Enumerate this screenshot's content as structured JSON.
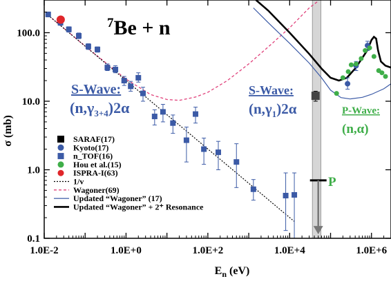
{
  "chart_data": {
    "type": "scatter",
    "title_prefix": "7",
    "title_main": "Be + n",
    "xlabel_main": "E",
    "xlabel_sub": "n",
    "xlabel_unit": " (eV)",
    "ylabel": "σ (mb)",
    "x_scale": "log",
    "y_scale": "log",
    "xlim": [
      0.01,
      3000000
    ],
    "ylim": [
      0.1,
      300
    ],
    "x_ticks": [
      {
        "value": 0.01,
        "label": "1.0E-2"
      },
      {
        "value": 1,
        "label": "1.0E+0"
      },
      {
        "value": 100,
        "label": "1.0E+2"
      },
      {
        "value": 10000,
        "label": "1.0E+4"
      },
      {
        "value": 1000000,
        "label": "1.0E+6"
      }
    ],
    "y_ticks": [
      {
        "value": 0.1,
        "label": "0.1"
      },
      {
        "value": 1,
        "label": "1.0"
      },
      {
        "value": 10,
        "label": "10.0"
      },
      {
        "value": 100,
        "label": "100.0"
      }
    ],
    "annotations": {
      "s_wave_left_heading": "S-Wave:",
      "s_wave_left_reaction": "(n,γ",
      "s_wave_left_sub": "3+4",
      "s_wave_left_tail": ")2α",
      "s_wave_right_heading": "S-Wave:",
      "s_wave_right_reaction": "(n,γ",
      "s_wave_right_sub": "1",
      "s_wave_right_tail": ")2α",
      "p_wave_heading": "P-Wave:",
      "p_wave_reaction": "(n,α)",
      "p_label": "P"
    },
    "legend": [
      {
        "label": "SARAF(17)",
        "kind": "square",
        "color": "#000000"
      },
      {
        "label": "Kyoto(17)",
        "kind": "circle",
        "color": "#3b5aa6"
      },
      {
        "label": "n_TOF(16)",
        "kind": "square",
        "color": "#3b5aa6"
      },
      {
        "label": "Hou et al.(15)",
        "kind": "circle",
        "color": "#3fae49"
      },
      {
        "label": "ISPRA-I(63)",
        "kind": "circle",
        "color": "#e0262a"
      },
      {
        "label": "1/v",
        "kind": "dotted",
        "color": "#000000"
      },
      {
        "label": "Wagoner(69)",
        "kind": "dashed",
        "color": "#e0407a"
      },
      {
        "label": "Updated “Wagoner” (17)",
        "kind": "thin",
        "color": "#3b5aa6"
      },
      {
        "label": "Updated “Wagoner” + 2⁺ Resonance",
        "kind": "thick",
        "color": "#000000"
      }
    ],
    "colors": {
      "ntof": "#3b5aa6",
      "kyoto": "#3b5aa6",
      "hou": "#3fae49",
      "ispra": "#e0262a",
      "saraf": "#444444",
      "wagoner69": "#e0407a",
      "updated_wagoner": "#3b5aa6",
      "resonance": "#000000",
      "band": "#c8c8c8"
    },
    "series": {
      "ntof": [
        {
          "x": 0.0125,
          "y": 185,
          "lo": 170,
          "hi": 200
        },
        {
          "x": 0.025,
          "y": 140,
          "lo": 128,
          "hi": 152
        },
        {
          "x": 0.04,
          "y": 112,
          "lo": 102,
          "hi": 122
        },
        {
          "x": 0.07,
          "y": 90,
          "lo": 82,
          "hi": 99
        },
        {
          "x": 0.12,
          "y": 63,
          "lo": 57,
          "hi": 69
        },
        {
          "x": 0.2,
          "y": 57,
          "lo": 52,
          "hi": 62
        },
        {
          "x": 0.35,
          "y": 31,
          "lo": 28,
          "hi": 35
        },
        {
          "x": 0.55,
          "y": 29,
          "lo": 26,
          "hi": 33
        },
        {
          "x": 0.9,
          "y": 20,
          "lo": 17,
          "hi": 23
        },
        {
          "x": 1.3,
          "y": 16.5,
          "lo": 14,
          "hi": 19.5
        },
        {
          "x": 2,
          "y": 22,
          "lo": 19,
          "hi": 26
        },
        {
          "x": 2.6,
          "y": 13,
          "lo": 10,
          "hi": 16
        },
        {
          "x": 5,
          "y": 6,
          "lo": 4.5,
          "hi": 7.5
        },
        {
          "x": 8,
          "y": 7,
          "lo": 5,
          "hi": 9
        },
        {
          "x": 14,
          "y": 4.8,
          "lo": 3.4,
          "hi": 6.3
        },
        {
          "x": 30,
          "y": 2.7,
          "lo": 1.3,
          "hi": 4.2
        },
        {
          "x": 50,
          "y": 6.5,
          "lo": 4.8,
          "hi": 8.2
        },
        {
          "x": 80,
          "y": 2,
          "lo": 1.2,
          "hi": 2.9
        },
        {
          "x": 180,
          "y": 1.8,
          "lo": 1.0,
          "hi": 2.6
        },
        {
          "x": 500,
          "y": 1.3,
          "lo": 0.55,
          "hi": 2.4
        },
        {
          "x": 1300,
          "y": 0.52,
          "lo": 0.36,
          "hi": 0.72
        },
        {
          "x": 8000,
          "y": 0.42,
          "lo": 0.13,
          "hi": 0.9
        },
        {
          "x": 13000,
          "y": 0.43,
          "lo": 0.1,
          "hi": 0.9
        }
      ],
      "kyoto": [
        {
          "x": 260000,
          "y": 18,
          "lo": 15,
          "hi": 22
        },
        {
          "x": 420000,
          "y": 33,
          "lo": 28,
          "hi": 38
        },
        {
          "x": 800000,
          "y": 65,
          "lo": 55,
          "hi": 75
        }
      ],
      "hou": [
        {
          "x": 140000,
          "y": 13
        },
        {
          "x": 200000,
          "y": 22
        },
        {
          "x": 270000,
          "y": 27
        },
        {
          "x": 320000,
          "y": 34
        },
        {
          "x": 420000,
          "y": 35
        },
        {
          "x": 560000,
          "y": 42
        },
        {
          "x": 700000,
          "y": 55
        },
        {
          "x": 900000,
          "y": 60
        },
        {
          "x": 1150000,
          "y": 45
        },
        {
          "x": 1500000,
          "y": 28
        },
        {
          "x": 1800000,
          "y": 26
        },
        {
          "x": 2200000,
          "y": 23
        }
      ],
      "ispra": [
        {
          "x": 0.0253,
          "y": 155
        }
      ],
      "saraf": [
        {
          "x": 43000,
          "y": 12,
          "lo": 10,
          "hi": 14
        }
      ],
      "one_over_v": [
        [
          0.0125,
          180
        ],
        [
          13000,
          0.176
        ]
      ],
      "wagoner69": [
        [
          0.0125,
          180
        ],
        [
          0.1,
          64
        ],
        [
          1,
          21
        ],
        [
          4,
          12.5
        ],
        [
          10,
          10.6
        ],
        [
          20,
          10.3
        ],
        [
          50,
          11.5
        ],
        [
          100,
          13.5
        ],
        [
          300,
          20
        ],
        [
          1000,
          35
        ],
        [
          3000,
          62
        ],
        [
          10000,
          118
        ],
        [
          30000,
          230
        ],
        [
          50000,
          290
        ]
      ],
      "updated_wagoner": [
        [
          1300,
          230
        ],
        [
          3000,
          140
        ],
        [
          10000,
          70
        ],
        [
          30000,
          36
        ],
        [
          60000,
          22
        ],
        [
          100000,
          14.5
        ],
        [
          180000,
          11.3
        ],
        [
          300000,
          10.8
        ],
        [
          600000,
          11.4
        ],
        [
          1000000,
          12.6
        ],
        [
          2000000,
          15.2
        ],
        [
          3000000,
          18
        ]
      ],
      "resonance": [
        [
          1500,
          300
        ],
        [
          3000,
          210
        ],
        [
          10000,
          100
        ],
        [
          30000,
          49
        ],
        [
          60000,
          30
        ],
        [
          100000,
          22
        ],
        [
          160000,
          20
        ],
        [
          250000,
          22
        ],
        [
          400000,
          30
        ],
        [
          600000,
          43
        ],
        [
          800000,
          56
        ],
        [
          1000000,
          78
        ],
        [
          1150000,
          87
        ],
        [
          1300000,
          82
        ],
        [
          1450000,
          55
        ],
        [
          1700000,
          38
        ],
        [
          2200000,
          33
        ],
        [
          3000000,
          31
        ]
      ],
      "p_marker": {
        "x": 50000,
        "y": 0.7,
        "arrow_to": 0.12
      },
      "band": {
        "x_from": 36000,
        "x_to": 58000
      }
    }
  }
}
